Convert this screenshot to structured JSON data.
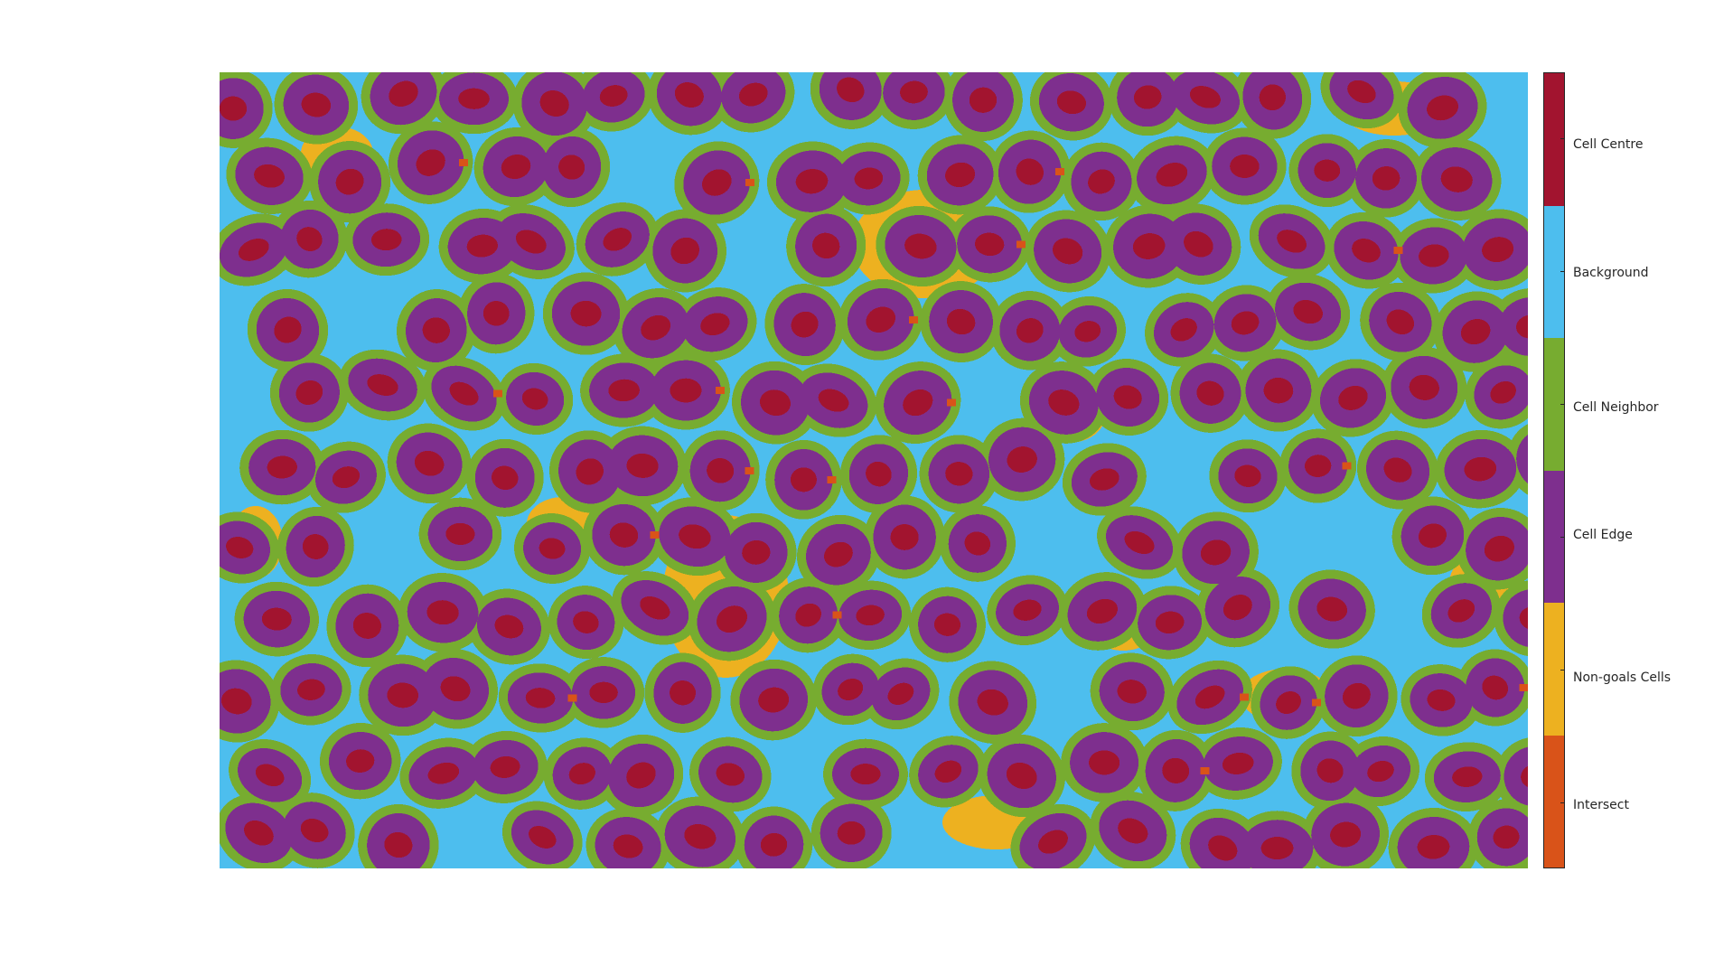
{
  "image": {
    "description_type": "segmentation-map",
    "classes": [
      {
        "label": "Cell Centre",
        "color": "#A2142F"
      },
      {
        "label": "Background",
        "color": "#4DBEEE"
      },
      {
        "label": "Cell Neighbor",
        "color": "#77AC30"
      },
      {
        "label": "Cell Edge",
        "color": "#7E2F8E"
      },
      {
        "label": "Non-goals Cells",
        "color": "#EDB120"
      },
      {
        "label": "Intersect",
        "color": "#D95319"
      }
    ]
  }
}
